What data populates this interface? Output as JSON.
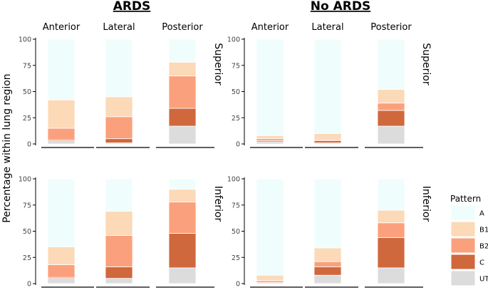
{
  "chart_data": {
    "type": "bar",
    "stacked": true,
    "ylabel": "Percentage within lung region",
    "ylim": [
      0,
      100
    ],
    "yticks": [
      0,
      25,
      50,
      75,
      100
    ],
    "groups": [
      "ARDS",
      "No ARDS"
    ],
    "columns": [
      "Anterior",
      "Lateral",
      "Posterior"
    ],
    "rows": [
      "Superior",
      "Inferior"
    ],
    "legend": {
      "title": "Pattern",
      "entries": [
        {
          "name": "A",
          "color": "#f0fdfd"
        },
        {
          "name": "B1",
          "color": "#fcd9b7"
        },
        {
          "name": "B2",
          "color": "#fba07c"
        },
        {
          "name": "C",
          "color": "#d0683d"
        },
        {
          "name": "UTS",
          "color": "#dcdcdc"
        }
      ]
    },
    "stack_order": [
      "UTS",
      "C",
      "B2",
      "B1",
      "A"
    ],
    "panels": [
      {
        "group": "ARDS",
        "row": "Superior",
        "bars": [
          {
            "column": "Anterior",
            "UTS": 3,
            "C": 1,
            "B2": 11,
            "B1": 27,
            "A": 58
          },
          {
            "column": "Lateral",
            "UTS": 1,
            "C": 4,
            "B2": 21,
            "B1": 19,
            "A": 55
          },
          {
            "column": "Posterior",
            "UTS": 17,
            "C": 17,
            "B2": 31,
            "B1": 13,
            "A": 22
          }
        ]
      },
      {
        "group": "No ARDS",
        "row": "Superior",
        "bars": [
          {
            "column": "Anterior",
            "UTS": 2,
            "C": 1,
            "B2": 2,
            "B1": 3,
            "A": 92
          },
          {
            "column": "Lateral",
            "UTS": 1,
            "C": 2,
            "B2": 1,
            "B1": 6,
            "A": 90
          },
          {
            "column": "Posterior",
            "UTS": 17,
            "C": 15,
            "B2": 7,
            "B1": 13,
            "A": 48
          }
        ]
      },
      {
        "group": "ARDS",
        "row": "Inferior",
        "bars": [
          {
            "column": "Anterior",
            "UTS": 5,
            "C": 1,
            "B2": 12,
            "B1": 17,
            "A": 65
          },
          {
            "column": "Lateral",
            "UTS": 5,
            "C": 11,
            "B2": 30,
            "B1": 23,
            "A": 31
          },
          {
            "column": "Posterior",
            "UTS": 15,
            "C": 33,
            "B2": 30,
            "B1": 12,
            "A": 10
          }
        ]
      },
      {
        "group": "No ARDS",
        "row": "Inferior",
        "bars": [
          {
            "column": "Anterior",
            "UTS": 1,
            "C": 1,
            "B2": 1,
            "B1": 5,
            "A": 92
          },
          {
            "column": "Lateral",
            "UTS": 8,
            "C": 8,
            "B2": 5,
            "B1": 13,
            "A": 66
          },
          {
            "column": "Posterior",
            "UTS": 15,
            "C": 29,
            "B2": 14,
            "B1": 12,
            "A": 30
          }
        ]
      }
    ]
  }
}
